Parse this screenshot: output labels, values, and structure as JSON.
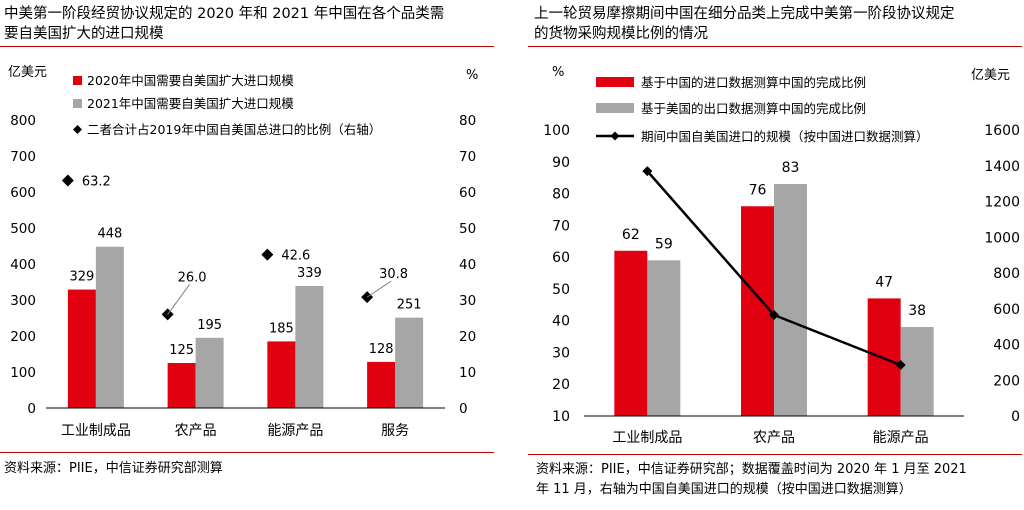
{
  "left": {
    "title_lines": [
      "中美第一阶段经贸协议规定的 2020 年和 2021 年中国在各个品类需",
      "要自美国扩大的进口规模"
    ],
    "source": "资料来源：PIIE，中信证券研究部测算",
    "chart_data": {
      "type": "bar",
      "title": "中美第一阶段经贸协议规定的 2020 年和 2021 年中国在各个品类需要自美国扩大的进口规模",
      "categories": [
        "工业制成品",
        "农产品",
        "能源产品",
        "服务"
      ],
      "left_unit": "亿美元",
      "right_unit": "%",
      "ylim": [
        0,
        800
      ],
      "y_ticks": [
        0,
        100,
        200,
        300,
        400,
        500,
        600,
        700,
        800
      ],
      "y2lim": [
        0,
        80
      ],
      "y2_ticks": [
        0,
        10,
        20,
        30,
        40,
        50,
        60,
        70,
        80
      ],
      "series": [
        {
          "name": "2020年中国需要自美国扩大进口规模",
          "type": "bar",
          "color": "#e0000f",
          "values": [
            329,
            125,
            185,
            128
          ]
        },
        {
          "name": "2021年中国需要自美国扩大进口规模",
          "type": "bar",
          "color": "#a6a6a6",
          "values": [
            448,
            195,
            339,
            251
          ]
        },
        {
          "name": "二者合计占2019年中国自美国总进口的比例（右轴）",
          "type": "scatter",
          "marker": "diamond",
          "axis": "right",
          "values": [
            63.2,
            26.0,
            42.6,
            30.8
          ]
        }
      ]
    }
  },
  "right": {
    "title_lines": [
      "上一轮贸易摩擦期间中国在细分品类上完成中美第一阶段协议规定",
      "的货物采购规模比例的情况"
    ],
    "source_lines": [
      "资料来源：PIIE，中信证券研究部；数据覆盖时间为 2020 年 1 月至 2021",
      "年 11 月，右轴为中国自美国进口的规模（按中国进口数据测算）"
    ],
    "chart_data": {
      "type": "bar",
      "title": "上一轮贸易摩擦期间中国在细分品类上完成中美第一阶段协议规定的货物采购规模比例的情况",
      "categories": [
        "工业制成品",
        "农产品",
        "能源产品"
      ],
      "left_unit": "%",
      "right_unit": "亿美元",
      "ylim": [
        10,
        100
      ],
      "y_ticks": [
        10,
        20,
        30,
        40,
        50,
        60,
        70,
        80,
        90,
        100
      ],
      "y2lim": [
        0,
        1600
      ],
      "y2_ticks": [
        0,
        200,
        400,
        600,
        800,
        1000,
        1200,
        1400,
        1600
      ],
      "series": [
        {
          "name": "基于中国的进口数据测算中国的完成比例",
          "type": "bar",
          "color": "#e0000f",
          "values": [
            62,
            76,
            47
          ]
        },
        {
          "name": "基于美国的出口数据测算中国的完成比例",
          "type": "bar",
          "color": "#a6a6a6",
          "values": [
            59,
            83,
            38
          ]
        },
        {
          "name": "期间中国自美国进口的规模（按中国进口数据测算）",
          "type": "line",
          "axis": "right",
          "color": "#000000",
          "values": [
            1370,
            565,
            285
          ]
        }
      ]
    }
  }
}
